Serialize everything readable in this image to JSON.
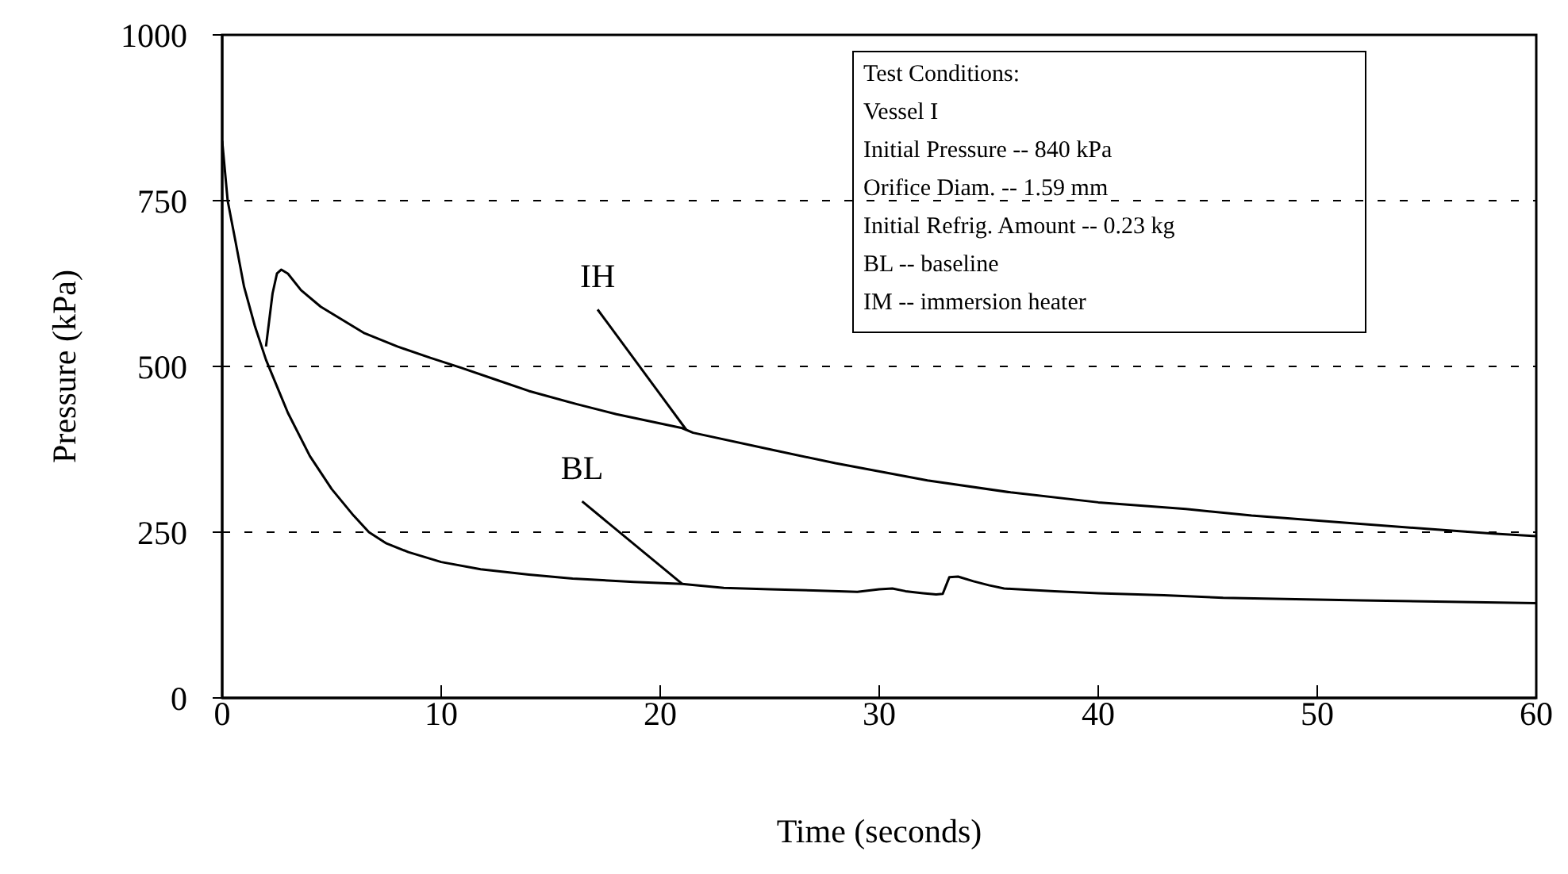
{
  "chart_data": {
    "type": "line",
    "xlabel": "Time (seconds)",
    "ylabel": "Pressure (kPa)",
    "xlim": [
      0,
      60
    ],
    "xticks": [
      0,
      10,
      20,
      30,
      40,
      50,
      60
    ],
    "ylim": [
      0,
      1000
    ],
    "yticks": [
      0,
      250,
      500,
      750,
      1000
    ],
    "grid": "y",
    "legend": false,
    "marker": "none",
    "line_style": "solid",
    "series": [
      {
        "color": "#000000",
        "x": [
          0,
          0.25,
          0.6,
          1,
          1.5,
          2,
          2.5,
          3,
          4,
          5,
          6,
          6.7,
          7.5,
          8.5,
          10,
          11.8,
          14,
          16,
          18.8,
          21,
          22.9,
          25,
          27,
          29,
          30,
          30.6,
          31.2,
          32,
          32.6,
          32.9,
          33.2,
          33.6,
          34.3,
          35,
          35.7,
          38,
          40,
          43,
          45.7,
          49,
          52,
          56,
          60
        ],
        "values": [
          840,
          750,
          690,
          620,
          560,
          510,
          470,
          430,
          365,
          315,
          275,
          250,
          233,
          220,
          205,
          194,
          186,
          180,
          175,
          172,
          166,
          164,
          162,
          160,
          164,
          165,
          161,
          158,
          156,
          157,
          182,
          183,
          176,
          170,
          165,
          161,
          158,
          155,
          151,
          149,
          147,
          145,
          143
        ]
      },
      {
        "color": "#000000",
        "x": [
          2,
          2.3,
          2.5,
          2.7,
          3,
          3.6,
          4.5,
          5.5,
          6.5,
          8,
          9.5,
          10.9,
          12.5,
          14,
          16.2,
          18,
          21,
          21.5,
          25,
          28,
          32.2,
          36,
          40,
          44,
          47,
          51,
          55,
          58,
          60
        ],
        "values": [
          530,
          610,
          640,
          646,
          640,
          615,
          590,
          570,
          550,
          530,
          513,
          498,
          480,
          463,
          443,
          428,
          407,
          400,
          375,
          354,
          328,
          310,
          295,
          285,
          275,
          265,
          255,
          248,
          244
        ]
      }
    ],
    "annotations": [
      {
        "text": "IH",
        "x": 21.2,
        "y": 404
      },
      {
        "text": "BL",
        "x": 21,
        "y": 172
      },
      "Test Conditions:",
      "Vessel I",
      "Initial Pressure -- 840 kPa",
      "Orifice Diam. -- 1.59 mm",
      "Initial Refrig. Amount -- 0.23 kg",
      "BL -- baseline",
      "IM -- immersion heater"
    ]
  }
}
